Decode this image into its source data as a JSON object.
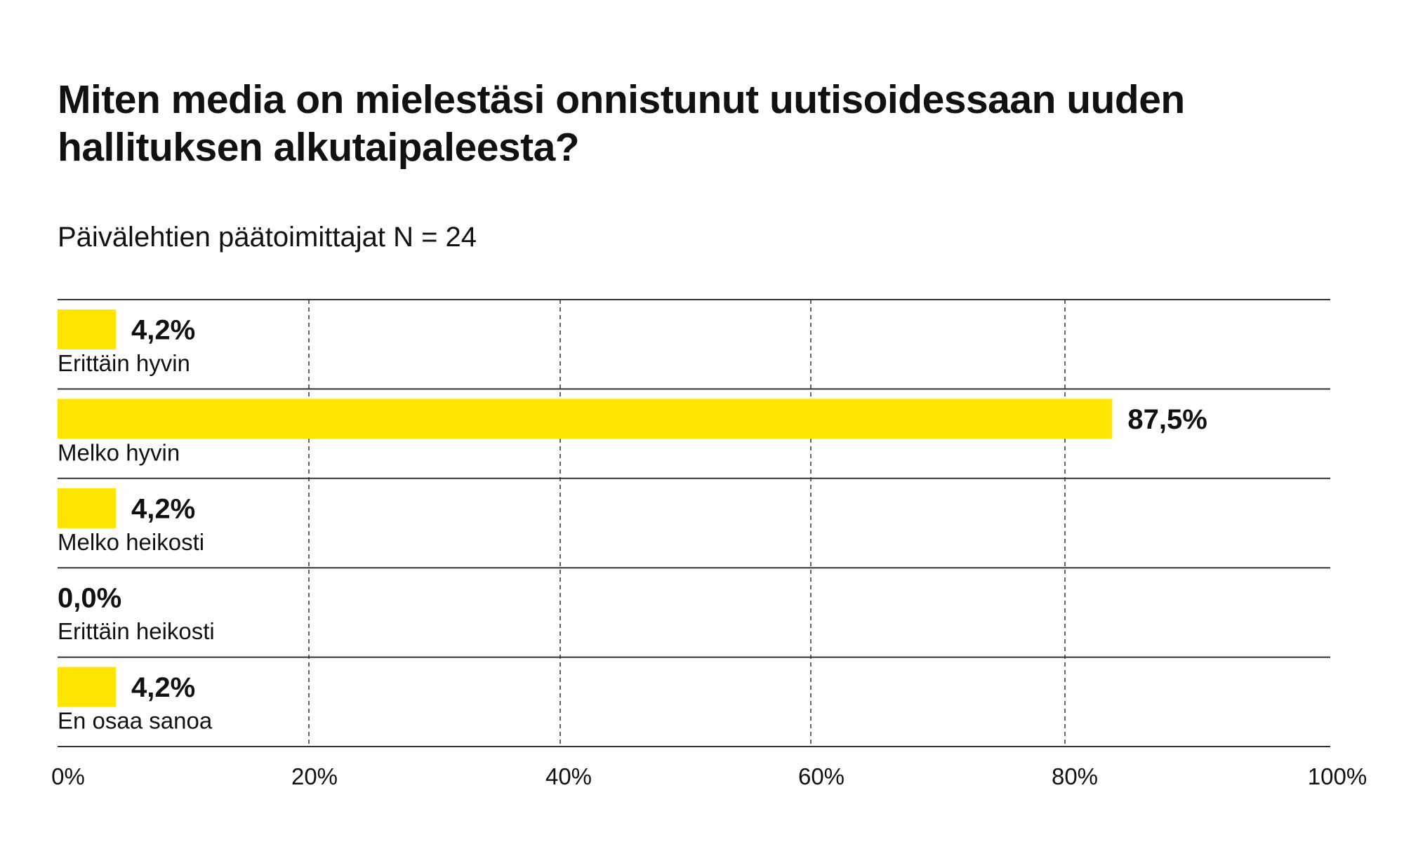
{
  "chart_data": {
    "type": "bar",
    "orientation": "horizontal",
    "title": "Miten media on mielestäsi onnistunut uutisoidessaan uuden hallituksen alkutaipaleesta?",
    "subtitle": "Päivälehtien päätoimittajat N = 24",
    "categories": [
      "Erittäin hyvin",
      "Melko hyvin",
      "Melko heikosti",
      "Erittäin heikosti",
      "En osaa sanoa"
    ],
    "values": [
      4.2,
      87.5,
      4.2,
      0.0,
      4.2
    ],
    "value_labels": [
      "4,2%",
      "87,5%",
      "4,2%",
      "0,0%",
      "4,2%"
    ],
    "x_ticks": [
      0,
      20,
      40,
      60,
      80,
      100
    ],
    "x_tick_labels": [
      "0%",
      "20%",
      "40%",
      "60%",
      "80%",
      "100%"
    ],
    "xlim": [
      0,
      100
    ],
    "grid": "vertical dashed",
    "bar_color": "#FFE500",
    "line_color": "#333333"
  }
}
